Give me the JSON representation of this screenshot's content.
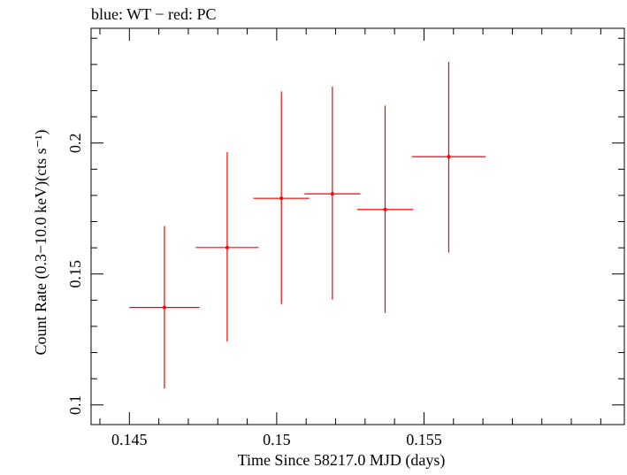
{
  "chart_data": {
    "type": "scatter",
    "title": "blue: WT − red: PC",
    "xlabel": "Time Since 58217.0 MJD (days)",
    "ylabel": "Count Rate (0.3−10.0 keV)(cts s⁻¹)",
    "xlim": [
      0.1437,
      0.1618
    ],
    "ylim": [
      0.0925,
      0.2438
    ],
    "x_ticks": [
      0.145,
      0.15,
      0.155
    ],
    "x_tick_labels": [
      "0.145",
      "0.15",
      "0.155"
    ],
    "y_ticks": [
      0.1,
      0.15,
      0.2
    ],
    "y_tick_labels": [
      "0.1",
      "0.15",
      "0.2"
    ],
    "grid": false,
    "series": [
      {
        "name": "PC",
        "color": "#ff0000",
        "points": [
          {
            "x": 0.14619,
            "y": 0.1372,
            "xerr_low": 0.00119,
            "xerr_high": 0.00119,
            "yerr_low": 0.0309,
            "yerr_high": 0.0311
          },
          {
            "x": 0.14832,
            "y": 0.1601,
            "xerr_low": 0.00107,
            "xerr_high": 0.00107,
            "yerr_low": 0.0359,
            "yerr_high": 0.0364
          },
          {
            "x": 0.15016,
            "y": 0.1789,
            "xerr_low": 0.00095,
            "xerr_high": 0.00095,
            "yerr_low": 0.0404,
            "yerr_high": 0.0408
          },
          {
            "x": 0.15189,
            "y": 0.1806,
            "xerr_low": 0.00095,
            "xerr_high": 0.00095,
            "yerr_low": 0.0404,
            "yerr_high": 0.0409
          },
          {
            "x": 0.15368,
            "y": 0.1746,
            "xerr_low": 0.00095,
            "xerr_high": 0.00095,
            "yerr_low": 0.0395,
            "yerr_high": 0.0397
          },
          {
            "x": 0.15584,
            "y": 0.1948,
            "xerr_low": 0.00125,
            "xerr_high": 0.00125,
            "yerr_low": 0.0366,
            "yerr_high": 0.0362
          }
        ]
      }
    ]
  }
}
